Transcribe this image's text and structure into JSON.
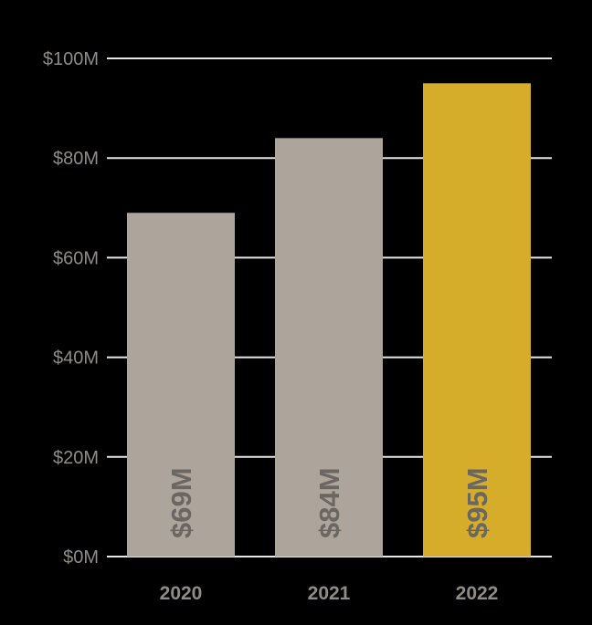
{
  "chart_data": {
    "type": "bar",
    "categories": [
      "2020",
      "2021",
      "2022"
    ],
    "values": [
      69,
      84,
      95
    ],
    "data_labels": [
      "$69M",
      "$84M",
      "$95M"
    ],
    "ylim": [
      0,
      100
    ],
    "yticks": [
      0,
      20,
      40,
      60,
      80,
      100
    ],
    "ytick_labels": [
      "$0M",
      "$20M",
      "$40M",
      "$60M",
      "$80M",
      "$100M"
    ],
    "grid": true,
    "bar_colors": [
      "#ada59c",
      "#ada59c",
      "#d6ad2b"
    ],
    "background": "#000000"
  }
}
